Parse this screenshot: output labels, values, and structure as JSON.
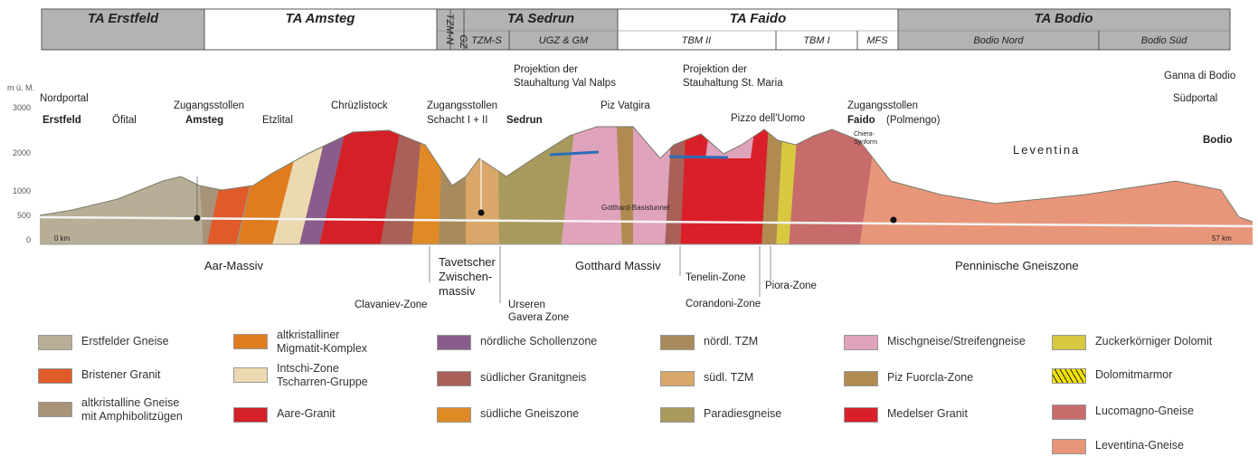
{
  "header": {
    "sections": [
      "TA Erstfeld",
      "TA Amsteg",
      "TA Sedrun",
      "TA Faido",
      "TA Bodio"
    ],
    "subsections": [
      "TZM-N",
      "GZ",
      "TZM-S",
      "UGZ & GM",
      "TBM II",
      "TBM I",
      "MFS",
      "Bodio Nord",
      "Bodio Süd"
    ]
  },
  "axis": {
    "unit": "m ü. M.",
    "ticks": [
      3000,
      2000,
      1000,
      500,
      0
    ]
  },
  "profile": {
    "labels": [
      {
        "lines": [
          "Nordportal"
        ]
      },
      {
        "lines": [
          "Erstfeld"
        ]
      },
      {
        "lines": [
          "Öfital"
        ]
      },
      {
        "lines": [
          "Zugangsstollen"
        ]
      },
      {
        "lines": [
          "Amsteg"
        ]
      },
      {
        "lines": [
          "Etzlital"
        ]
      },
      {
        "lines": [
          "Chrüzlistock"
        ]
      },
      {
        "lines": [
          "Zugangsstollen",
          "Schacht I + II"
        ]
      },
      {
        "lines": [
          "Sedrun"
        ]
      },
      {
        "lines": [
          "Projektion der",
          "Stauhaltung Val Nalps"
        ]
      },
      {
        "lines": [
          "Piz Vatgira"
        ]
      },
      {
        "lines": [
          "Projektion der",
          "Stauhaltung St. Maria"
        ]
      },
      {
        "lines": [
          "Pizzo dell'Uomo"
        ]
      },
      {
        "lines": [
          "Zugangsstollen"
        ]
      },
      {
        "lines": [
          "Faido"
        ]
      },
      {
        "lines": [
          "(Polmengo)"
        ]
      },
      {
        "lines": [
          "Chiera-",
          "Synform"
        ]
      },
      {
        "lines": [
          "Leventina"
        ]
      },
      {
        "lines": [
          "Ganna di Bodio"
        ]
      },
      {
        "lines": [
          "Südportal"
        ]
      },
      {
        "lines": [
          "Bodio"
        ]
      },
      {
        "lines": [
          "Gotthard-Basistunnel"
        ]
      },
      {
        "lines": [
          "0 km"
        ]
      },
      {
        "lines": [
          "57 km"
        ]
      }
    ],
    "zones": [
      {
        "lines": [
          "Aar-Massiv"
        ]
      },
      {
        "lines": [
          "Clavaniev-Zone"
        ]
      },
      {
        "lines": [
          "Tavetscher",
          "Zwischen-",
          "massiv"
        ]
      },
      {
        "lines": [
          "Urseren",
          "Gavera Zone"
        ]
      },
      {
        "lines": [
          "Gotthard Massiv"
        ]
      },
      {
        "lines": [
          "Tenelin-Zone"
        ]
      },
      {
        "lines": [
          "Corandoni-Zone"
        ]
      },
      {
        "lines": [
          "Piora-Zone"
        ]
      },
      {
        "lines": [
          "Penninische Gneiszone"
        ]
      }
    ]
  },
  "legend": [
    {
      "lines": [
        "Erstfelder Gneise"
      ]
    },
    {
      "lines": [
        "Bristener Granit"
      ]
    },
    {
      "lines": [
        "altkristalline Gneise",
        "mit Amphibolitzügen"
      ]
    },
    {
      "lines": [
        "altkristalliner",
        "Migmatit-Komplex"
      ]
    },
    {
      "lines": [
        "Intschi-Zone",
        "Tscharren-Gruppe"
      ]
    },
    {
      "lines": [
        "Aare-Granit"
      ]
    },
    {
      "lines": [
        "nördliche Schollenzone"
      ]
    },
    {
      "lines": [
        "südlicher Granitgneis"
      ]
    },
    {
      "lines": [
        "südliche Gneiszone"
      ]
    },
    {
      "lines": [
        "nördl. TZM"
      ]
    },
    {
      "lines": [
        "südl. TZM"
      ]
    },
    {
      "lines": [
        "Paradiesgneise"
      ]
    },
    {
      "lines": [
        "Mischgneise/Streifengneise"
      ]
    },
    {
      "lines": [
        "Piz Fuorcla-Zone"
      ]
    },
    {
      "lines": [
        "Medelser Granit"
      ]
    },
    {
      "lines": [
        "Zuckerkörniger Dolomit"
      ]
    },
    {
      "lines": [
        "Dolomitmarmor"
      ]
    },
    {
      "lines": [
        "Lucomagno-Gneise"
      ]
    },
    {
      "lines": [
        "Leventina-Gneise"
      ]
    }
  ]
}
